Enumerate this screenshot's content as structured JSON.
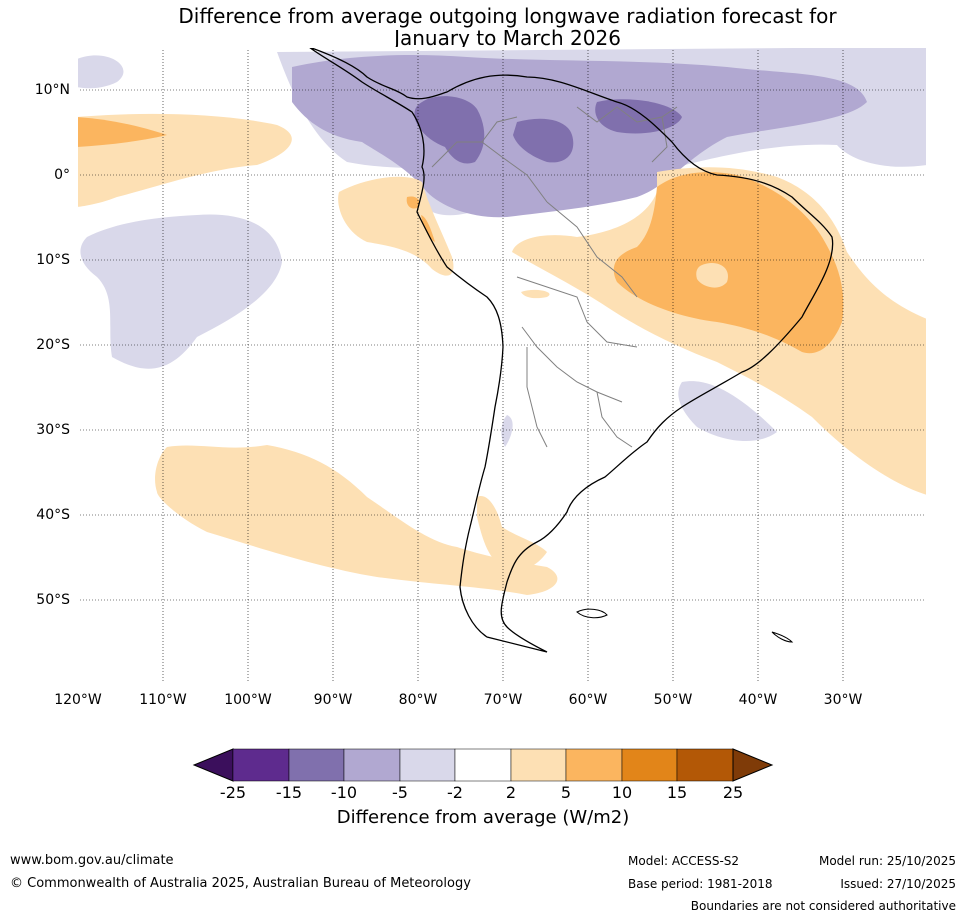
{
  "title": {
    "line1": "Difference from average outgoing longwave radiation forecast for",
    "line2": "January to March 2026"
  },
  "map": {
    "lat_labels": [
      "10°N",
      "0°",
      "10°S",
      "20°S",
      "30°S",
      "40°S",
      "50°S"
    ],
    "lon_labels": [
      "120°W",
      "110°W",
      "100°W",
      "90°W",
      "80°W",
      "70°W",
      "60°W",
      "50°W",
      "40°W",
      "30°W"
    ]
  },
  "legend": {
    "ticks": [
      "-25",
      "-15",
      "-10",
      "-5",
      "-2",
      "2",
      "5",
      "10",
      "15",
      "25"
    ],
    "colors": [
      "#3b0f5c",
      "#5e2b8e",
      "#8070ad",
      "#b1a8d1",
      "#d9d8ea",
      "#ffffff",
      "#fde0b4",
      "#fbb55f",
      "#e28519",
      "#b35806",
      "#7f3b08"
    ],
    "label": "Difference from average (W/m2)"
  },
  "footer": {
    "website": "www.bom.gov.au/climate",
    "copyright": "© Commonwealth of Australia 2025, Australian Bureau of Meteorology",
    "model": "Model: ACCESS-S2",
    "base_period": "Base period: 1981-2018",
    "model_run": "Model run: 25/10/2025",
    "issued": "Issued: 27/10/2025",
    "disclaimer": "Boundaries are not considered authoritative"
  }
}
